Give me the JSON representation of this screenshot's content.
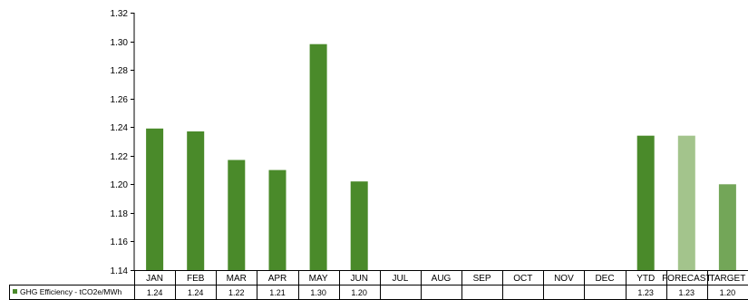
{
  "chart_data": {
    "type": "bar",
    "title": "",
    "xlabel": "",
    "ylabel": "",
    "ylim": [
      1.14,
      1.32
    ],
    "ytick_step": 0.02,
    "grid": false,
    "categories": [
      "JAN",
      "FEB",
      "MAR",
      "APR",
      "MAY",
      "JUN",
      "JUL",
      "AUG",
      "SEP",
      "OCT",
      "NOV",
      "DEC",
      "YTD",
      "FORECAST",
      "TARGET"
    ],
    "series": [
      {
        "name": "GHG Efficiency - tCO2e/MWh",
        "values": [
          1.239,
          1.237,
          1.217,
          1.21,
          1.298,
          1.202,
          null,
          null,
          null,
          null,
          null,
          null,
          1.234,
          1.234,
          1.2
        ],
        "table_labels": [
          "1.24",
          "1.24",
          "1.22",
          "1.21",
          "1.30",
          "1.20",
          "",
          "",
          "",
          "",
          "",
          "",
          "1.23",
          "1.23",
          "1.20"
        ],
        "colors": [
          "#4a8a2a",
          "#4a8a2a",
          "#4a8a2a",
          "#4a8a2a",
          "#4a8a2a",
          "#4a8a2a",
          "#4a8a2a",
          "#4a8a2a",
          "#4a8a2a",
          "#4a8a2a",
          "#4a8a2a",
          "#4a8a2a",
          "#4a8a2a",
          "#a3c48c",
          "#73a658"
        ]
      }
    ],
    "legend_color": "#4a8a2a"
  }
}
